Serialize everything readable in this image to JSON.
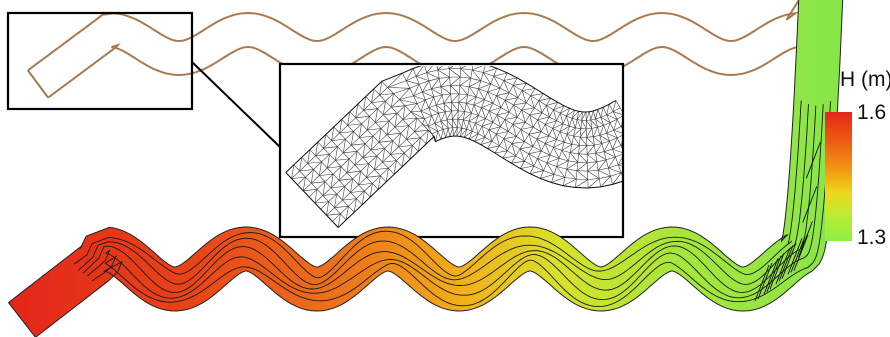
{
  "legend": {
    "title": "H (m)",
    "max_label": "1.6",
    "min_label": "1.3",
    "colors": [
      "#e3261a",
      "#ec5a14",
      "#f29a12",
      "#efd51c",
      "#bdeb34",
      "#8df046"
    ]
  },
  "colors": {
    "outline": "#a77a52",
    "mesh": "#333333",
    "contour": "#1a1a1a"
  }
}
